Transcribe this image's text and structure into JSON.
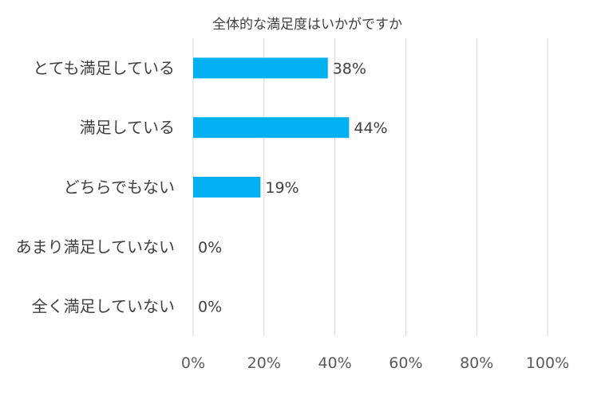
{
  "chart_data": {
    "type": "bar",
    "orientation": "horizontal",
    "title": "全体的な満足度はいかがですか",
    "categories": [
      "とても満足している",
      "満足している",
      "どちらでもない",
      "あまり満足していない",
      "全く満足していない"
    ],
    "values": [
      38,
      44,
      19,
      0,
      0
    ],
    "data_labels": [
      "38%",
      "44%",
      "19%",
      "0%",
      "0%"
    ],
    "xlim": [
      0,
      100
    ],
    "x_ticks": [
      0,
      20,
      40,
      60,
      80,
      100
    ],
    "x_tick_labels": [
      "0%",
      "20%",
      "40%",
      "60%",
      "80%",
      "100%"
    ],
    "bar_color": "#00b0f0",
    "grid": true,
    "legend": "none"
  }
}
